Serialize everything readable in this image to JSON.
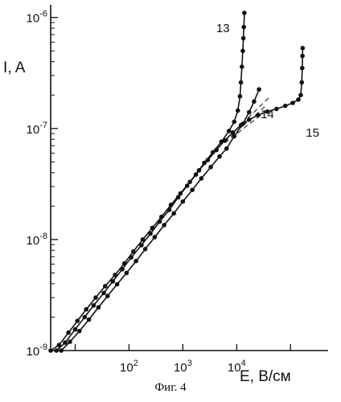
{
  "chart_data": {
    "type": "scatter",
    "xlabel": "E, В/см",
    "ylabel": "I, A",
    "xscale": "log",
    "yscale": "log",
    "xlim": [
      3.5,
      500000
    ],
    "ylim": [
      1e-09,
      1.3e-06
    ],
    "x_ticks": [
      {
        "value": 100,
        "base": "10",
        "exp": "2"
      },
      {
        "value": 1000,
        "base": "10",
        "exp": "3"
      },
      {
        "value": 10000,
        "base": "10",
        "exp": "4"
      }
    ],
    "y_ticks": [
      {
        "value": 1e-09,
        "base": "10",
        "exp": "-9"
      },
      {
        "value": 1e-08,
        "base": "10",
        "exp": "-8"
      },
      {
        "value": 1e-07,
        "base": "10",
        "exp": "-7"
      },
      {
        "value": 1e-06,
        "base": "10",
        "exp": "-6"
      }
    ],
    "series": [
      {
        "name": "13",
        "points": [
          [
            4.5,
            1e-09
          ],
          [
            6.5,
            1.18e-09
          ],
          [
            10,
            1.55e-09
          ],
          [
            15,
            2e-09
          ],
          [
            22,
            2.55e-09
          ],
          [
            34,
            3.3e-09
          ],
          [
            50,
            4.2e-09
          ],
          [
            75,
            5.4e-09
          ],
          [
            110,
            6.9e-09
          ],
          [
            170,
            8.9e-09
          ],
          [
            250,
            1.13e-08
          ],
          [
            370,
            1.45e-08
          ],
          [
            560,
            1.85e-08
          ],
          [
            820,
            2.4e-08
          ],
          [
            1200,
            3.05e-08
          ],
          [
            1750,
            3.85e-08
          ],
          [
            2500,
            4.9e-08
          ],
          [
            3600,
            6.1e-08
          ],
          [
            5200,
            7.6e-08
          ],
          [
            7200,
            9.5e-08
          ],
          [
            9000,
            1.15e-07
          ],
          [
            10500,
            1.45e-07
          ],
          [
            11500,
            1.95e-07
          ],
          [
            12000,
            2.6e-07
          ],
          [
            12500,
            3.6e-07
          ],
          [
            13000,
            5e-07
          ],
          [
            13300,
            6.5e-07
          ],
          [
            13600,
            8.2e-07
          ],
          [
            13900,
            1.1e-06
          ]
        ]
      },
      {
        "name": "14",
        "points": [
          [
            5.5,
            1e-09
          ],
          [
            8,
            1.2e-09
          ],
          [
            12,
            1.5e-09
          ],
          [
            18,
            1.9e-09
          ],
          [
            27,
            2.45e-09
          ],
          [
            40,
            3.1e-09
          ],
          [
            60,
            3.95e-09
          ],
          [
            90,
            5e-09
          ],
          [
            135,
            6.4e-09
          ],
          [
            200,
            8.2e-09
          ],
          [
            300,
            1.05e-08
          ],
          [
            450,
            1.35e-08
          ],
          [
            680,
            1.72e-08
          ],
          [
            1000,
            2.2e-08
          ],
          [
            1500,
            2.8e-08
          ],
          [
            2200,
            3.55e-08
          ],
          [
            3300,
            4.5e-08
          ],
          [
            4800,
            5.6e-08
          ],
          [
            6500,
            6.6e-08
          ],
          [
            9000,
            8.5e-08
          ],
          [
            13000,
            1.1e-07
          ],
          [
            17000,
            1.4e-07
          ],
          [
            21000,
            1.75e-07
          ],
          [
            26000,
            2.25e-07
          ]
        ]
      },
      {
        "name": "15",
        "points": [
          [
            3.5,
            1e-09
          ],
          [
            5,
            1.12e-09
          ],
          [
            7.5,
            1.45e-09
          ],
          [
            11,
            1.85e-09
          ],
          [
            16,
            2.35e-09
          ],
          [
            24,
            3e-09
          ],
          [
            36,
            3.8e-09
          ],
          [
            55,
            4.8e-09
          ],
          [
            82,
            6.1e-09
          ],
          [
            120,
            7.8e-09
          ],
          [
            180,
            1e-08
          ],
          [
            270,
            1.27e-08
          ],
          [
            400,
            1.6e-08
          ],
          [
            600,
            2.05e-08
          ],
          [
            900,
            2.6e-08
          ],
          [
            1350,
            3.3e-08
          ],
          [
            2000,
            4.2e-08
          ],
          [
            2900,
            5.2e-08
          ],
          [
            4200,
            6.4e-08
          ],
          [
            6000,
            7.8e-08
          ],
          [
            8500,
            9.2e-08
          ],
          [
            12000,
            1.07e-07
          ],
          [
            17000,
            1.2e-07
          ],
          [
            25000,
            1.32e-07
          ],
          [
            37000,
            1.42e-07
          ],
          [
            55000,
            1.5e-07
          ],
          [
            80000,
            1.6e-07
          ],
          [
            110000,
            1.7e-07
          ],
          [
            140000,
            1.82e-07
          ],
          [
            155000,
            2e-07
          ],
          [
            162000,
            2.6e-07
          ],
          [
            165000,
            3.5e-07
          ],
          [
            167000,
            4.5e-07
          ],
          [
            168000,
            5.3e-07
          ]
        ]
      }
    ],
    "dashed_extrapolations": [
      [
        [
          6000,
          7.8e-08
        ],
        [
          40000,
          1.9e-07
        ]
      ],
      [
        [
          6000,
          7.6e-08
        ],
        [
          35000,
          1.6e-07
        ]
      ],
      [
        [
          6000,
          7.4e-08
        ],
        [
          30000,
          1.35e-07
        ]
      ]
    ]
  },
  "caption": "Фиг. 4"
}
